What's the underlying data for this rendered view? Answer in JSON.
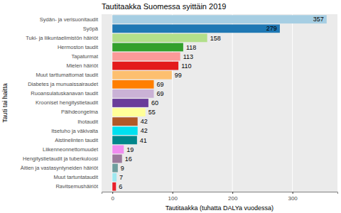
{
  "chart_data": {
    "type": "bar",
    "orientation": "horizontal",
    "title": "Tautitaakka Suomessa syittäin 2019",
    "xlabel": "Tautitaakka (tuhatta DALYa vuodessa)",
    "ylabel": "Tauti tai haitta",
    "categories": [
      "Sydän- ja verisuonitaudit",
      "Syöpä",
      "Tuki- ja liikuntaelimistön häiriöt",
      "Hermoston taudit",
      "Tapaturmat",
      "Mielen häiriöt",
      "Muut tarttumattomat taudit",
      "Diabetes ja munuaissairaudet",
      "Ruoansulatuskanavan taudit",
      "Krooniset hengitystietaudit",
      "Päihdeongelma",
      "Ihotaudit",
      "Itsetuho ja väkivalta",
      "Aistinelinten taudit",
      "Liikenneonnettomuudet",
      "Hengitystietaudit ja tuberkuloosi",
      "Äitien ja vastasyntyneiden häiriöt",
      "Muut tartuntataudit",
      "Ravitsemushäiriöt"
    ],
    "values": [
      357,
      279,
      158,
      118,
      113,
      110,
      99,
      69,
      69,
      60,
      55,
      42,
      42,
      41,
      19,
      16,
      9,
      7,
      6
    ],
    "colors": [
      "#a6cee3",
      "#1f78b4",
      "#b2df8a",
      "#33a02c",
      "#fb9a99",
      "#e31a1c",
      "#fdbf6f",
      "#ff7f00",
      "#cab2d6",
      "#6a3d9a",
      "#ffff99",
      "#b15928",
      "#00e0f0",
      "#00868b",
      "#f08cf0",
      "#9c7a9c",
      "#6e9e9e",
      "#9ee8f0",
      "#e8202a"
    ],
    "xlim": [
      -18,
      375
    ],
    "xticks": [
      0,
      100,
      200,
      300
    ],
    "grid": true,
    "data_labels": true
  }
}
